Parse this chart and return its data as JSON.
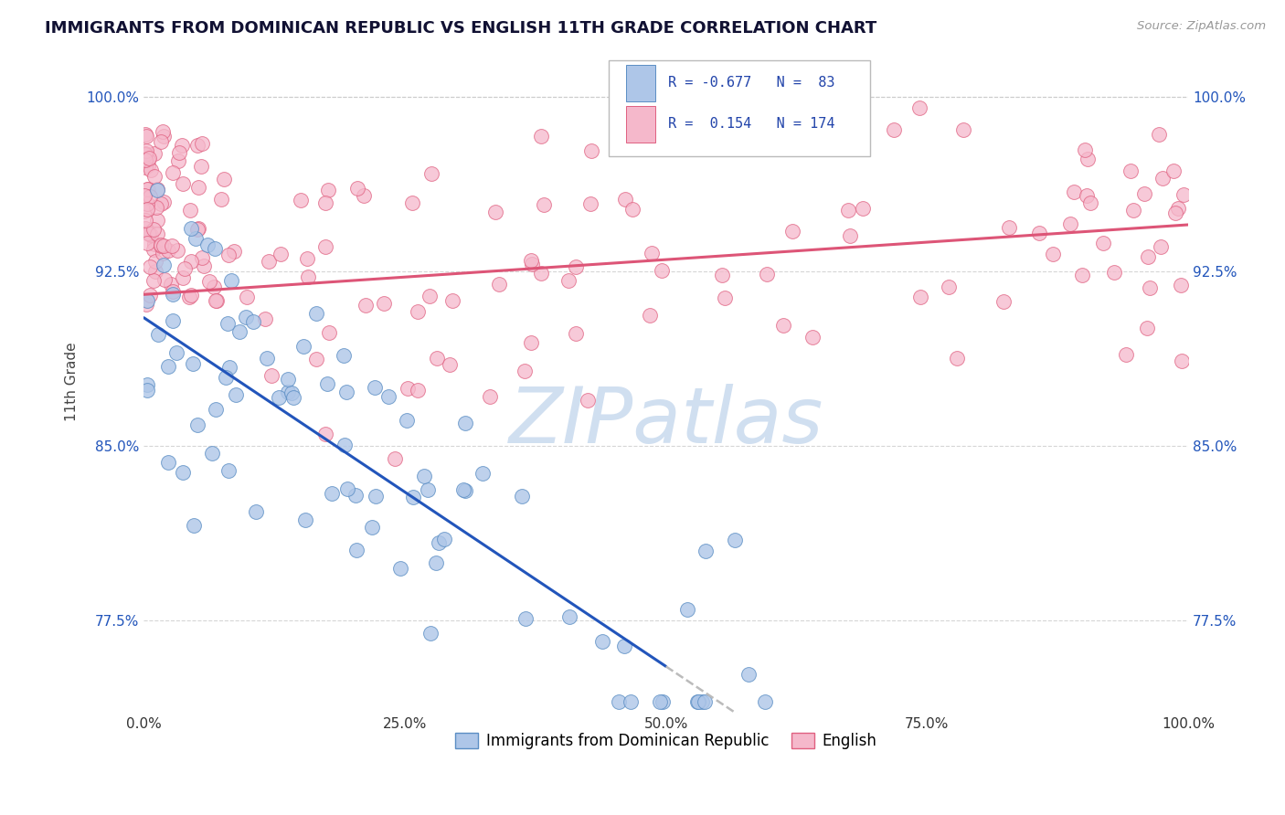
{
  "title": "IMMIGRANTS FROM DOMINICAN REPUBLIC VS ENGLISH 11TH GRADE CORRELATION CHART",
  "source": "Source: ZipAtlas.com",
  "xlabel_bottom": "Immigrants from Dominican Republic",
  "xlabel_right": "English",
  "ylabel": "11th Grade",
  "x_min": 0.0,
  "x_max": 100.0,
  "y_min": 73.5,
  "y_max": 102.0,
  "y_ticks": [
    77.5,
    85.0,
    92.5,
    100.0
  ],
  "x_ticks": [
    0.0,
    25.0,
    50.0,
    75.0,
    100.0
  ],
  "x_tick_labels": [
    "0.0%",
    "25.0%",
    "50.0%",
    "75.0%",
    "100.0%"
  ],
  "blue_R": -0.677,
  "blue_N": 83,
  "pink_R": 0.154,
  "pink_N": 174,
  "blue_color": "#aec6e8",
  "blue_edge_color": "#5b8ec4",
  "pink_color": "#f5b8cb",
  "pink_edge_color": "#e06080",
  "blue_line_color": "#2255bb",
  "blue_line_start_y": 90.5,
  "blue_line_end_x": 50.0,
  "blue_line_end_y": 75.5,
  "pink_line_color": "#dd5577",
  "pink_line_start_y": 91.5,
  "pink_line_end_y": 94.5,
  "dashed_line_color": "#bbbbbb",
  "watermark_color": "#d0dff0",
  "background_color": "#ffffff",
  "grid_color": "#cccccc",
  "title_color": "#111133",
  "ytick_color": "#2255bb",
  "xtick_color": "#2255bb",
  "source_color": "#999999",
  "legend_text_color": "#2244aa"
}
